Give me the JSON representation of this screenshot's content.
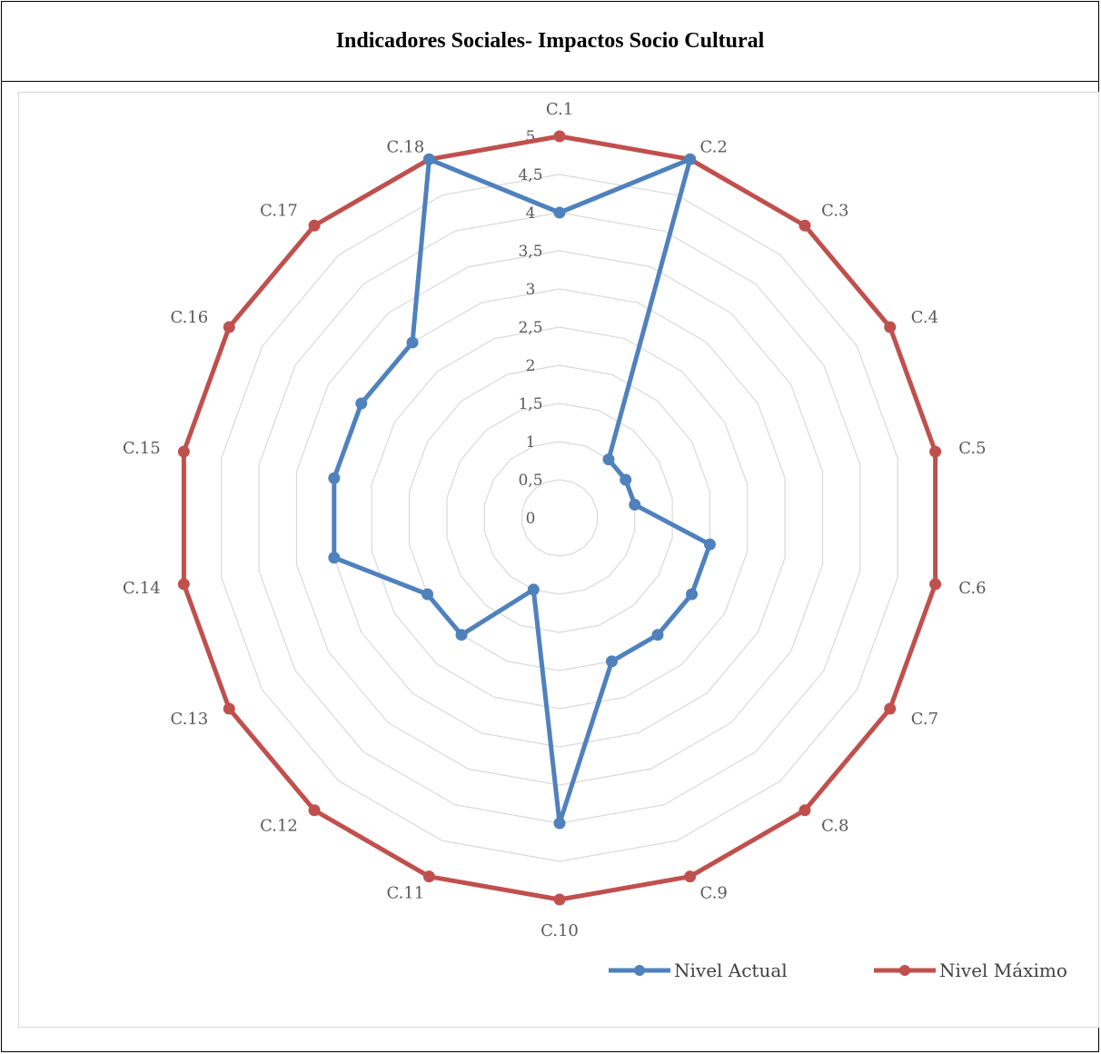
{
  "title": "Indicadores Sociales- Impactos Socio Cultural",
  "chart_data": {
    "type": "radar",
    "categories": [
      "C.1",
      "C.2",
      "C.3",
      "C.4",
      "C.5",
      "C.6",
      "C.7",
      "C.8",
      "C.9",
      "C.10",
      "C.11",
      "C.12",
      "C.13",
      "C.14",
      "C.15",
      "C.16",
      "C.17",
      "C.18"
    ],
    "r_ticks": [
      "0",
      "0,5",
      "1",
      "1,5",
      "2",
      "2,5",
      "3",
      "3,5",
      "4",
      "4,5",
      "5"
    ],
    "rlim": [
      0,
      5
    ],
    "grid": true,
    "legend_position": "bottom-right",
    "series": [
      {
        "name": "Nivel Actual",
        "color": "#4f81bd",
        "values": [
          4,
          5,
          1,
          1,
          1,
          2,
          2,
          2,
          2,
          4,
          1,
          2,
          2,
          3,
          3,
          3,
          3,
          5
        ]
      },
      {
        "name": "Nivel Máximo",
        "color": "#c0504d",
        "values": [
          5,
          5,
          5,
          5,
          5,
          5,
          5,
          5,
          5,
          5,
          5,
          5,
          5,
          5,
          5,
          5,
          5,
          5
        ]
      }
    ]
  }
}
